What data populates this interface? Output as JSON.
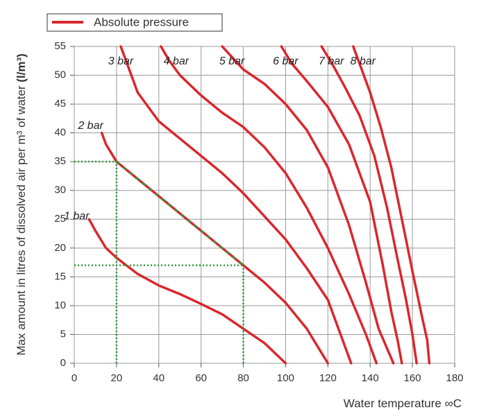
{
  "chart_data": {
    "type": "line",
    "legend": "Absolute pressure",
    "xlabel": "Water temperature ∞C",
    "ylabel": "Max amount in litres of dissolved air per m³ of water",
    "ylabel_unit": "(l/m³)",
    "xlim": [
      0,
      180
    ],
    "xticks": [
      0,
      20,
      40,
      60,
      80,
      100,
      120,
      140,
      160,
      180
    ],
    "ylim": [
      0,
      55
    ],
    "yticks": [
      0,
      5,
      10,
      15,
      20,
      25,
      30,
      35,
      40,
      45,
      50,
      55
    ],
    "grid": true,
    "series": [
      {
        "name": "1 bar",
        "color": "#d9272e",
        "x": [
          7,
          10,
          15,
          20,
          30,
          40,
          50,
          60,
          70,
          80,
          90,
          100
        ],
        "values": [
          25,
          23,
          20,
          18.3,
          15.5,
          13.5,
          12,
          10.3,
          8.5,
          6,
          3.5,
          0
        ]
      },
      {
        "name": "2 bar",
        "color": "#d9272e",
        "x": [
          13,
          15,
          20,
          30,
          40,
          50,
          60,
          70,
          80,
          90,
          100,
          110,
          120
        ],
        "values": [
          40,
          38,
          35,
          32,
          29,
          26,
          23,
          20,
          17,
          14,
          10.5,
          6,
          0
        ]
      },
      {
        "name": "3 bar",
        "color": "#d9272e",
        "x": [
          22,
          25,
          30,
          40,
          50,
          60,
          70,
          80,
          90,
          100,
          110,
          120,
          126,
          131
        ],
        "values": [
          55,
          52,
          47,
          42,
          39,
          36,
          33,
          29.5,
          25.5,
          21.5,
          16.5,
          11,
          5,
          0
        ]
      },
      {
        "name": "4 bar",
        "color": "#d9272e",
        "x": [
          41,
          45,
          50,
          60,
          70,
          80,
          90,
          100,
          110,
          120,
          130,
          138,
          143
        ],
        "values": [
          55,
          52.5,
          50,
          46.5,
          43.5,
          41,
          37.5,
          33,
          27,
          20,
          12,
          5,
          0
        ]
      },
      {
        "name": "5 bar",
        "color": "#d9272e",
        "x": [
          70,
          75,
          80,
          90,
          100,
          110,
          120,
          130,
          138,
          144,
          151
        ],
        "values": [
          55,
          53,
          51,
          48.5,
          45,
          40.5,
          34,
          24,
          14,
          6,
          0
        ]
      },
      {
        "name": "6 bar",
        "color": "#d9272e",
        "x": [
          98,
          103,
          110,
          120,
          130,
          140,
          146,
          150,
          153,
          155
        ],
        "values": [
          55,
          52,
          49,
          44.5,
          38,
          28,
          17,
          9,
          4,
          0
        ]
      },
      {
        "name": "7 bar",
        "color": "#d9272e",
        "x": [
          117,
          122,
          128,
          135,
          142,
          148,
          153,
          157,
          160,
          162
        ],
        "values": [
          55,
          52,
          48,
          43,
          36,
          27,
          18,
          11,
          5,
          0
        ]
      },
      {
        "name": "8 bar",
        "color": "#d9272e",
        "x": [
          132,
          136,
          140,
          145,
          150,
          155,
          160,
          164,
          167,
          168
        ],
        "values": [
          55,
          51,
          47,
          41,
          34,
          25,
          16,
          9,
          4,
          0
        ]
      }
    ],
    "guides": {
      "color": "#2e9a3a",
      "points": [
        {
          "x": 20,
          "y": 35
        },
        {
          "x": 80,
          "y": 17
        }
      ]
    }
  }
}
